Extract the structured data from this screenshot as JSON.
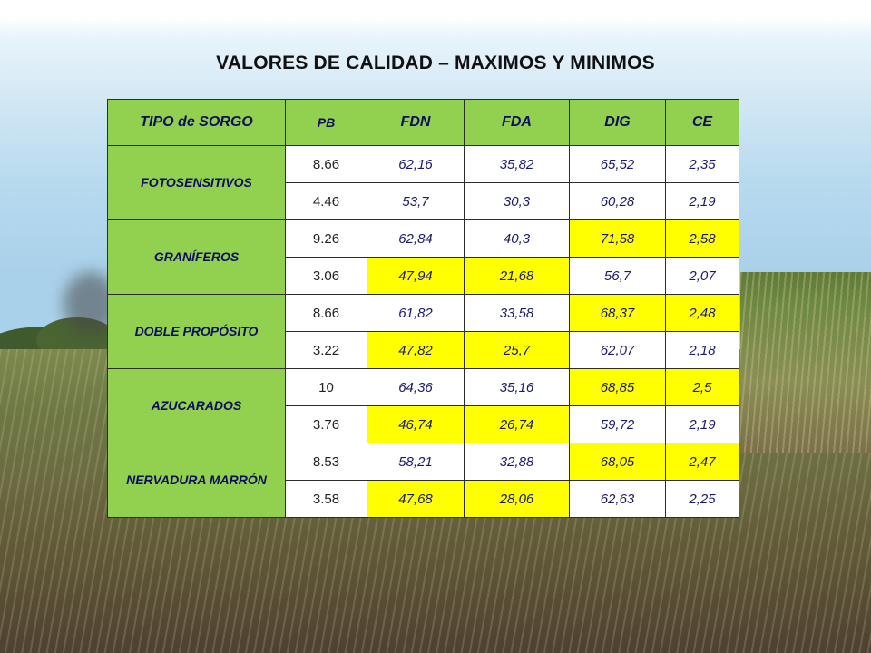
{
  "title": "VALORES DE CALIDAD – MAXIMOS Y MINIMOS",
  "headers": [
    "TIPO  de SORGO",
    "PB",
    "FDN",
    "FDA",
    "DIG",
    "CE"
  ],
  "groups": [
    {
      "name": "FOTOSENSITIVOS",
      "rows": [
        [
          "8.66",
          "62,16",
          "35,82",
          "65,52",
          "2,35"
        ],
        [
          "4.46",
          "53,7",
          "30,3",
          "60,28",
          "2,19"
        ]
      ]
    },
    {
      "name": "GRANÍFEROS",
      "rows": [
        [
          "9.26",
          "62,84",
          "40,3",
          "71,58",
          "2,58"
        ],
        [
          "3.06",
          "47,94",
          "21,68",
          "56,7",
          "2,07"
        ]
      ]
    },
    {
      "name": "DOBLE PROPÓSITO",
      "rows": [
        [
          "8.66",
          "61,82",
          "33,58",
          "68,37",
          "2,48"
        ],
        [
          "3.22",
          "47,82",
          "25,7",
          "62,07",
          "2,18"
        ]
      ]
    },
    {
      "name": "AZUCARADOS",
      "rows": [
        [
          "10",
          "64,36",
          "35,16",
          "68,85",
          "2,5"
        ],
        [
          "3.76",
          "46,74",
          "26,74",
          "59,72",
          "2,19"
        ]
      ]
    },
    {
      "name": "NERVADURA MARRÓN",
      "rows": [
        [
          "8.53",
          "58,21",
          "32,88",
          "68,05",
          "2,47"
        ],
        [
          "3.58",
          "47,68",
          "28,06",
          "62,63",
          "2,25"
        ]
      ]
    }
  ],
  "colors": {
    "header_bg": "#92d050",
    "highlight": "#ffff00",
    "cell_bg": "#ffffff",
    "text": "#1a1a6b"
  }
}
